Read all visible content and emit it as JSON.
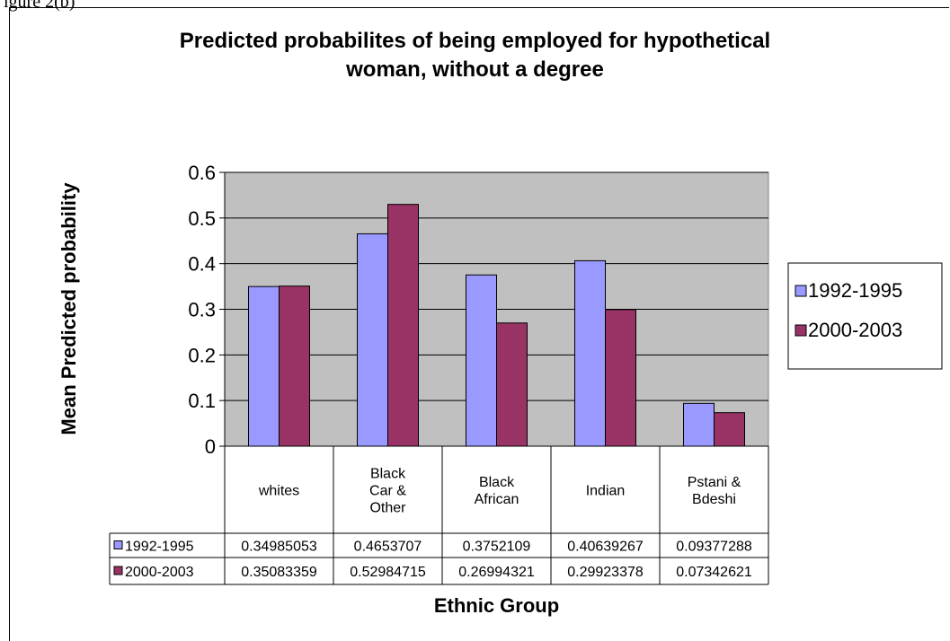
{
  "frame_caption": "igure 2(b)",
  "chart_data": {
    "type": "bar",
    "title_lines": [
      "Predicted probabilites of being employed for hypothetical",
      "woman, without a degree"
    ],
    "xlabel": "Ethnic Group",
    "ylabel": "Mean Predicted probability",
    "ylim": [
      0,
      0.6
    ],
    "yticks": [
      "0",
      "0.1",
      "0.2",
      "0.3",
      "0.4",
      "0.5",
      "0.6"
    ],
    "grid": true,
    "legend_position": "right",
    "categories": [
      [
        "whites"
      ],
      [
        "Black",
        "Car &",
        "Other"
      ],
      [
        "Black",
        "African"
      ],
      [
        "Indian"
      ],
      [
        "Pstani &",
        "Bdeshi"
      ]
    ],
    "series": [
      {
        "name": "1992-1995",
        "color": "#9999ff",
        "values": [
          0.34985053,
          0.4653707,
          0.3752109,
          0.40639267,
          0.09377288
        ],
        "labels": [
          "0.34985053",
          "0.4653707",
          "0.3752109",
          "0.40639267",
          "0.09377288"
        ]
      },
      {
        "name": "2000-2003",
        "color": "#993366",
        "values": [
          0.35083359,
          0.52984715,
          0.26994321,
          0.29923378,
          0.07342621
        ],
        "labels": [
          "0.35083359",
          "0.52984715",
          "0.26994321",
          "0.29923378",
          "0.07342621"
        ]
      }
    ],
    "plot_background": "#c0c0c0"
  }
}
